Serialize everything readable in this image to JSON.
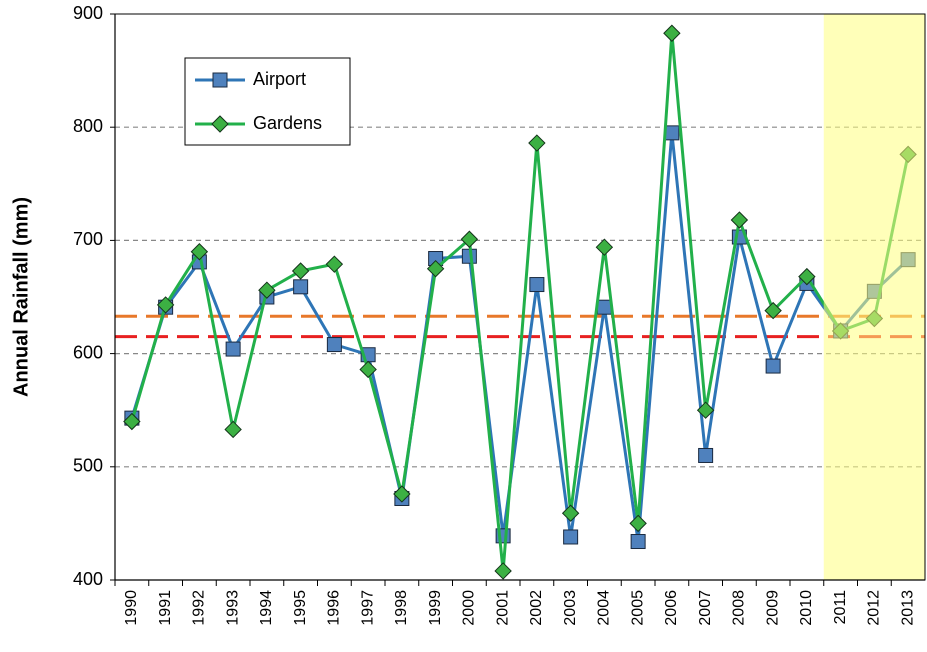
{
  "chart_data": {
    "type": "line",
    "y_label": "Annual Rainfall (mm)",
    "categories": [
      "1990",
      "1991",
      "1992",
      "1993",
      "1994",
      "1995",
      "1996",
      "1997",
      "1998",
      "1999",
      "2000",
      "2001",
      "2002",
      "2003",
      "2004",
      "2005",
      "2006",
      "2007",
      "2008",
      "2009",
      "2010",
      "2011",
      "2012",
      "2013"
    ],
    "series": [
      {
        "name": "Airport",
        "color": "#2e75b6",
        "marker_color": "#4f81bd",
        "marker": "square",
        "values": [
          543,
          641,
          681,
          604,
          650,
          659,
          608,
          599,
          472,
          684,
          686,
          439,
          661,
          438,
          641,
          434,
          795,
          510,
          703,
          589,
          662,
          620,
          655,
          683
        ]
      },
      {
        "name": "Gardens",
        "color": "#22b04a",
        "marker_color": "#3cb043",
        "marker": "diamond",
        "values": [
          540,
          643,
          690,
          533,
          656,
          673,
          679,
          586,
          476,
          675,
          701,
          408,
          786,
          459,
          694,
          450,
          883,
          550,
          718,
          638,
          668,
          620,
          631,
          776
        ]
      }
    ],
    "reference_lines": [
      {
        "value": 633,
        "color": "#e8782a"
      },
      {
        "value": 615,
        "color": "#e82020"
      }
    ],
    "highlight": {
      "from": "2011",
      "color": "#ffff80"
    },
    "ylim": [
      400,
      900
    ],
    "yticks": [
      400,
      500,
      600,
      700,
      800,
      900
    ],
    "grid": true,
    "legend": "upper left"
  }
}
